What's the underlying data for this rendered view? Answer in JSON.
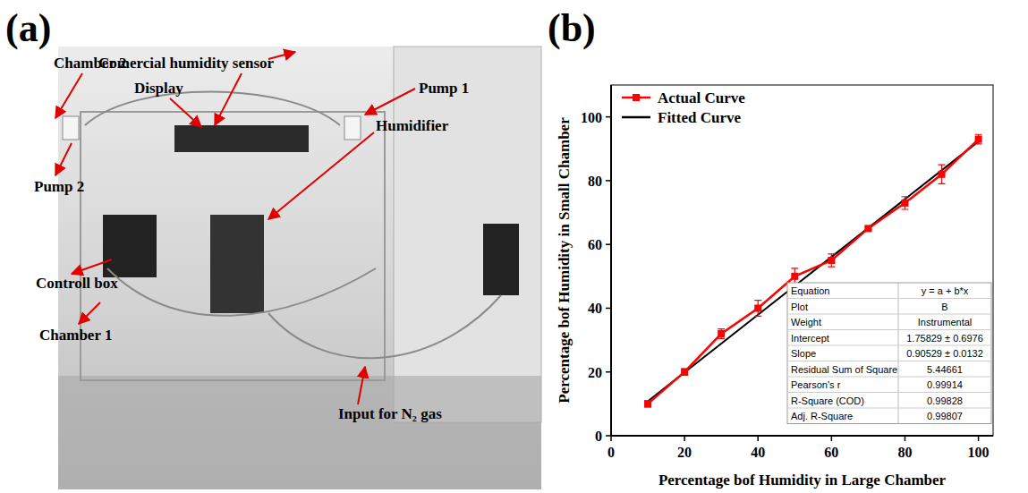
{
  "panel_letters": [
    "(a)",
    "(b)"
  ],
  "panel_a": {
    "labels": [
      "Chamber 2",
      "Comercial humidity sensor",
      "Display",
      "Pump 1",
      "Humidifier",
      "Pump 2",
      "Controll box",
      "Chamber 1",
      "Input for N₂ gas"
    ]
  },
  "chart_data": {
    "type": "line",
    "x_label": "Percentage bof Humidity in Large Chamber",
    "y_label": "Percentage bof Humidity in Small Chamber",
    "x": [
      10,
      20,
      30,
      40,
      50,
      60,
      70,
      80,
      90,
      100
    ],
    "series": [
      {
        "name": "Actual Curve",
        "color": "#ff0000",
        "marker": "square",
        "line_style": "solid",
        "values": [
          10,
          20,
          32,
          40,
          50,
          55,
          65,
          73,
          82,
          93
        ],
        "errors": [
          1,
          1,
          1.5,
          2.5,
          2.5,
          2,
          0.5,
          2,
          3,
          1.5
        ]
      },
      {
        "name": "Fitted Curve",
        "color": "#000000",
        "marker": "none",
        "line_style": "solid",
        "values": [
          10.81,
          19.86,
          28.92,
          37.97,
          47.02,
          56.08,
          65.13,
          74.18,
          83.23,
          92.29
        ]
      }
    ],
    "xlim": [
      0,
      104
    ],
    "xticks": [
      0,
      20,
      40,
      60,
      80,
      100
    ],
    "ylim": [
      0,
      110
    ],
    "yticks": [
      0,
      20,
      40,
      60,
      80,
      100
    ],
    "grid": false,
    "legend": "upper left",
    "table": {
      "rows": [
        [
          "Equation",
          "y = a + b*x"
        ],
        [
          "Plot",
          "B"
        ],
        [
          "Weight",
          "Instrumental"
        ],
        [
          "Intercept",
          "1.75829 ± 0.6976"
        ],
        [
          "Slope",
          "0.90529 ± 0.0132"
        ],
        [
          "Residual Sum of Square",
          "5.44661"
        ],
        [
          "Pearson's r",
          "0.99914"
        ],
        [
          "R-Square (COD)",
          "0.99828"
        ],
        [
          "Adj. R-Square",
          "0.99807"
        ]
      ]
    }
  }
}
